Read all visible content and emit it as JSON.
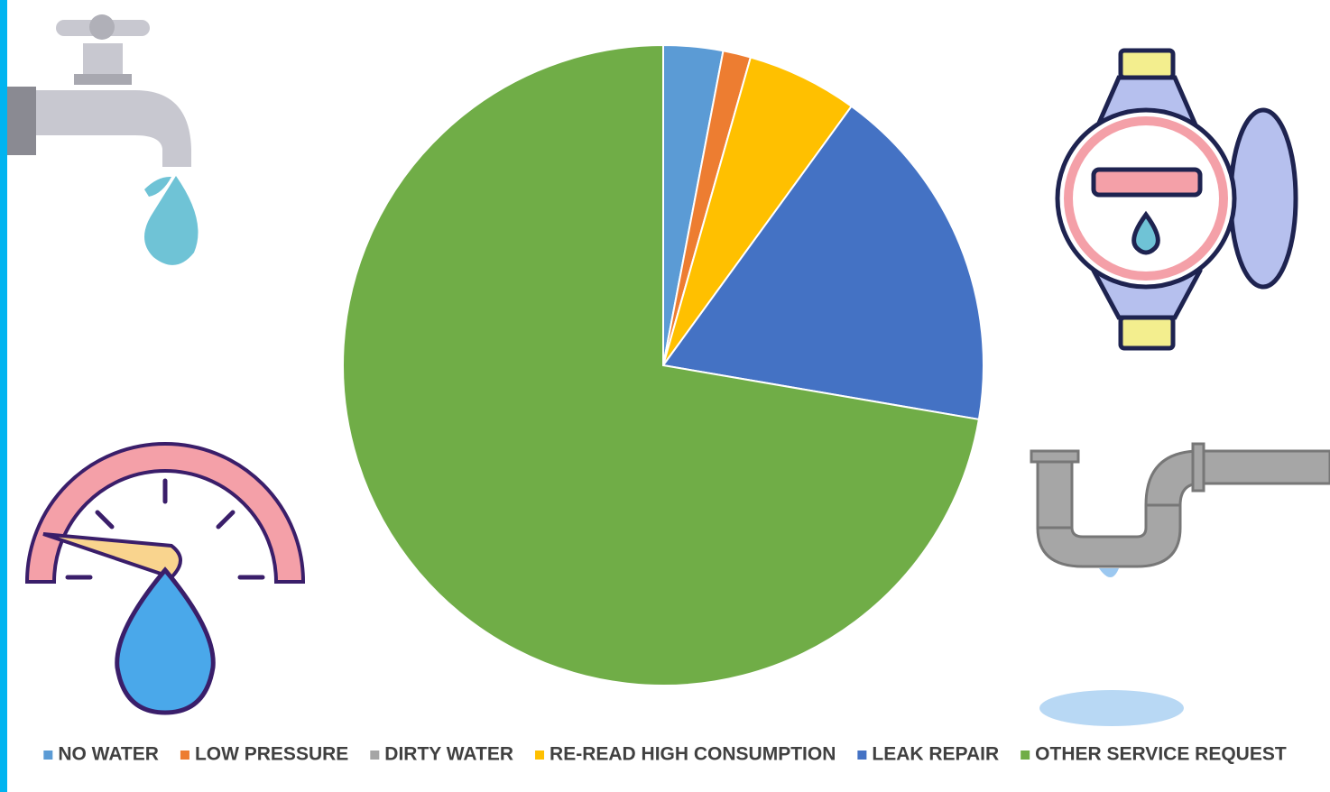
{
  "chart_data": {
    "type": "pie",
    "categories": [
      "NO WATER",
      "LOW PRESSURE",
      "DIRTY WATER",
      "RE-READ HIGH CONSUMPTION",
      "LEAK REPAIR",
      "OTHER SERVICE REQUEST"
    ],
    "values": [
      3,
      1.4,
      0,
      5.6,
      17.7,
      72.3
    ],
    "colors": [
      "#5b9bd5",
      "#ed7d31",
      "#a5a5a5",
      "#ffc000",
      "#4472c4",
      "#70ad47"
    ],
    "legend": "bottom"
  }
}
